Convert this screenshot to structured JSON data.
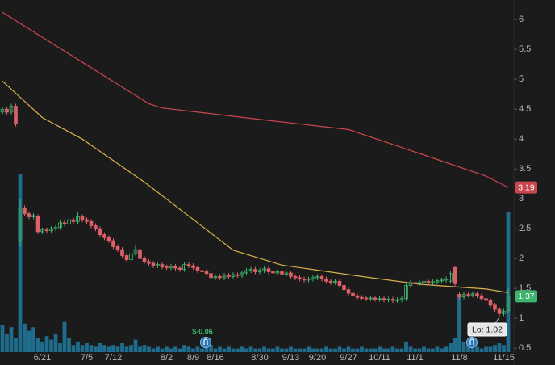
{
  "chart_data": {
    "type": "candlestick",
    "categories": [
      null,
      null,
      null,
      null,
      null,
      null,
      null,
      null,
      null,
      "6/21",
      null,
      null,
      null,
      null,
      null,
      null,
      null,
      null,
      null,
      "7/5",
      null,
      null,
      null,
      null,
      null,
      "7/12",
      null,
      null,
      null,
      null,
      null,
      null,
      null,
      null,
      null,
      null,
      null,
      "8/2",
      null,
      null,
      null,
      null,
      null,
      "8/9",
      null,
      null,
      null,
      null,
      "8/16",
      null,
      null,
      null,
      null,
      null,
      null,
      null,
      null,
      null,
      "8/30",
      null,
      null,
      null,
      null,
      null,
      null,
      "9/13",
      null,
      null,
      null,
      null,
      null,
      "9/20",
      null,
      null,
      null,
      null,
      null,
      null,
      "9/27",
      null,
      null,
      null,
      null,
      null,
      null,
      "10/11",
      null,
      null,
      null,
      null,
      null,
      null,
      null,
      "11/1",
      null,
      null,
      null,
      null,
      null,
      null,
      null,
      null,
      null,
      "11/8",
      null,
      null,
      null,
      null,
      null,
      null,
      null,
      null,
      null,
      "11/15",
      null
    ],
    "open": [
      4.45,
      4.5,
      4.45,
      4.55,
      2.3,
      2.85,
      2.75,
      2.7,
      2.7,
      2.45,
      2.48,
      2.47,
      2.5,
      2.52,
      2.6,
      2.58,
      2.65,
      2.62,
      2.7,
      2.65,
      2.62,
      2.55,
      2.5,
      2.4,
      2.35,
      2.3,
      2.2,
      2.15,
      2.05,
      1.98,
      2.08,
      2.15,
      2.0,
      1.95,
      1.92,
      1.88,
      1.9,
      1.86,
      1.85,
      1.87,
      1.84,
      1.82,
      1.9,
      1.88,
      1.85,
      1.8,
      1.78,
      1.75,
      1.68,
      1.7,
      1.68,
      1.72,
      1.7,
      1.73,
      1.72,
      1.76,
      1.8,
      1.82,
      1.78,
      1.8,
      1.83,
      1.78,
      1.76,
      1.78,
      1.74,
      1.76,
      1.7,
      1.68,
      1.66,
      1.64,
      1.66,
      1.68,
      1.7,
      1.66,
      1.62,
      1.6,
      1.62,
      1.55,
      1.48,
      1.42,
      1.38,
      1.35,
      1.34,
      1.33,
      1.34,
      1.32,
      1.33,
      1.31,
      1.32,
      1.3,
      1.31,
      1.33,
      1.55,
      1.6,
      1.58,
      1.6,
      1.62,
      1.6,
      1.61,
      1.63,
      1.64,
      1.62,
      1.85,
      1.4,
      1.36,
      1.4,
      1.39,
      1.41,
      1.38,
      1.33,
      1.3,
      1.22,
      1.15,
      1.08,
      1.13
    ],
    "high": [
      4.54,
      4.54,
      4.59,
      4.59,
      3.0,
      2.89,
      2.79,
      2.76,
      2.74,
      2.52,
      2.52,
      2.54,
      2.56,
      2.64,
      2.64,
      2.69,
      2.69,
      2.78,
      2.74,
      2.69,
      2.66,
      2.59,
      2.54,
      2.44,
      2.39,
      2.34,
      2.24,
      2.19,
      2.09,
      2.12,
      2.22,
      2.19,
      2.04,
      1.99,
      1.96,
      1.94,
      1.94,
      1.9,
      1.91,
      1.91,
      1.88,
      1.94,
      1.94,
      1.92,
      1.89,
      1.84,
      1.82,
      1.79,
      1.74,
      1.74,
      1.76,
      1.76,
      1.77,
      1.77,
      1.8,
      1.84,
      1.86,
      1.86,
      1.84,
      1.87,
      1.87,
      1.82,
      1.82,
      1.82,
      1.8,
      1.8,
      1.74,
      1.72,
      1.7,
      1.7,
      1.72,
      1.74,
      1.74,
      1.7,
      1.66,
      1.66,
      1.66,
      1.59,
      1.52,
      1.46,
      1.42,
      1.39,
      1.38,
      1.38,
      1.38,
      1.37,
      1.37,
      1.36,
      1.36,
      1.35,
      1.37,
      1.59,
      1.64,
      1.64,
      1.64,
      1.66,
      1.66,
      1.65,
      1.67,
      1.68,
      1.7,
      1.79,
      1.88,
      1.44,
      1.44,
      1.44,
      1.45,
      1.45,
      1.42,
      1.37,
      1.34,
      1.26,
      1.19,
      1.16,
      1.5
    ],
    "low": [
      4.41,
      4.41,
      4.41,
      4.21,
      2.2,
      2.71,
      2.66,
      2.66,
      2.41,
      2.41,
      2.43,
      2.43,
      2.46,
      2.48,
      2.54,
      2.54,
      2.58,
      2.58,
      2.61,
      2.58,
      2.51,
      2.46,
      2.36,
      2.31,
      2.26,
      2.16,
      2.11,
      2.01,
      1.94,
      1.94,
      2.04,
      1.96,
      1.91,
      1.88,
      1.84,
      1.84,
      1.82,
      1.81,
      1.81,
      1.8,
      1.78,
      1.78,
      1.84,
      1.81,
      1.76,
      1.74,
      1.71,
      1.64,
      1.64,
      1.64,
      1.64,
      1.66,
      1.66,
      1.68,
      1.68,
      1.72,
      1.76,
      1.74,
      1.74,
      1.76,
      1.74,
      1.72,
      1.72,
      1.7,
      1.7,
      1.66,
      1.64,
      1.62,
      1.6,
      1.6,
      1.62,
      1.64,
      1.62,
      1.58,
      1.56,
      1.56,
      1.51,
      1.44,
      1.38,
      1.34,
      1.31,
      1.3,
      1.29,
      1.29,
      1.28,
      1.28,
      1.27,
      1.27,
      1.26,
      1.26,
      1.27,
      1.29,
      1.51,
      1.54,
      1.54,
      1.56,
      1.56,
      1.56,
      1.57,
      1.59,
      1.6,
      1.58,
      1.54,
      1.32,
      1.32,
      1.35,
      1.35,
      1.34,
      1.29,
      1.26,
      1.18,
      1.11,
      1.02,
      1.04,
      1.09
    ],
    "close": [
      4.5,
      4.45,
      4.55,
      4.25,
      2.85,
      2.75,
      2.7,
      2.72,
      2.45,
      2.48,
      2.47,
      2.5,
      2.52,
      2.6,
      2.58,
      2.65,
      2.62,
      2.7,
      2.65,
      2.62,
      2.55,
      2.5,
      2.4,
      2.35,
      2.3,
      2.2,
      2.15,
      2.05,
      1.98,
      2.08,
      2.15,
      2.0,
      1.95,
      1.92,
      1.88,
      1.9,
      1.86,
      1.85,
      1.87,
      1.84,
      1.82,
      1.9,
      1.88,
      1.85,
      1.8,
      1.78,
      1.75,
      1.68,
      1.7,
      1.68,
      1.72,
      1.7,
      1.73,
      1.72,
      1.76,
      1.8,
      1.82,
      1.78,
      1.8,
      1.83,
      1.78,
      1.76,
      1.78,
      1.74,
      1.76,
      1.7,
      1.68,
      1.66,
      1.64,
      1.66,
      1.68,
      1.7,
      1.66,
      1.62,
      1.6,
      1.62,
      1.55,
      1.48,
      1.42,
      1.38,
      1.35,
      1.34,
      1.33,
      1.34,
      1.32,
      1.33,
      1.31,
      1.32,
      1.3,
      1.31,
      1.33,
      1.55,
      1.6,
      1.58,
      1.6,
      1.62,
      1.6,
      1.61,
      1.63,
      1.64,
      1.66,
      1.75,
      1.58,
      1.36,
      1.4,
      1.39,
      1.41,
      1.38,
      1.33,
      1.3,
      1.22,
      1.15,
      1.08,
      1.12,
      1.37
    ],
    "volume": [
      15,
      10,
      14,
      8,
      100,
      16,
      12,
      14,
      8,
      6,
      9,
      7,
      10,
      5,
      17,
      8,
      4,
      6,
      4,
      5,
      4,
      3,
      5,
      4,
      3,
      4,
      3,
      5,
      3,
      4,
      7,
      3,
      4,
      3,
      2,
      3,
      2,
      3,
      2,
      3,
      2,
      4,
      3,
      2,
      3,
      2,
      3,
      4,
      2,
      3,
      2,
      3,
      2,
      2,
      3,
      2,
      3,
      2,
      2,
      3,
      2,
      2,
      3,
      2,
      2,
      3,
      2,
      2,
      2,
      3,
      2,
      2,
      2,
      3,
      2,
      2,
      3,
      2,
      3,
      2,
      2,
      3,
      2,
      2,
      2,
      3,
      2,
      2,
      3,
      2,
      2,
      6,
      3,
      2,
      2,
      3,
      2,
      2,
      3,
      2,
      3,
      5,
      8,
      32,
      6,
      4,
      3,
      3,
      2,
      3,
      3,
      4,
      5,
      4,
      79
    ],
    "volume_lim": [
      0,
      100
    ],
    "up_color": "#3cb46e",
    "down_color": "#e05f68",
    "volume_color": "#1f6c8c",
    "ylim": [
      0.3,
      6.3
    ],
    "yticks": [
      0.5,
      1,
      1.5,
      2,
      2.5,
      3,
      3.5,
      4,
      4.5,
      5,
      5.5,
      6
    ],
    "moving_averages": [
      {
        "color": "#c9474d",
        "x": [
          0,
          33,
          36,
          59,
          78,
          94,
          109,
          114
        ],
        "values": [
          6.12,
          4.59,
          4.52,
          4.32,
          4.16,
          3.76,
          3.38,
          3.19
        ]
      },
      {
        "color": "#d8b24a",
        "x": [
          0,
          9,
          18,
          32,
          45,
          52,
          63,
          81,
          94,
          109,
          114
        ],
        "values": [
          4.97,
          4.36,
          4.0,
          3.28,
          2.54,
          2.14,
          1.89,
          1.7,
          1.57,
          1.49,
          1.43
        ]
      }
    ],
    "annotations": [
      {
        "text": "$-0.06"
      },
      {
        "text": "Lo: 1.02"
      }
    ]
  }
}
